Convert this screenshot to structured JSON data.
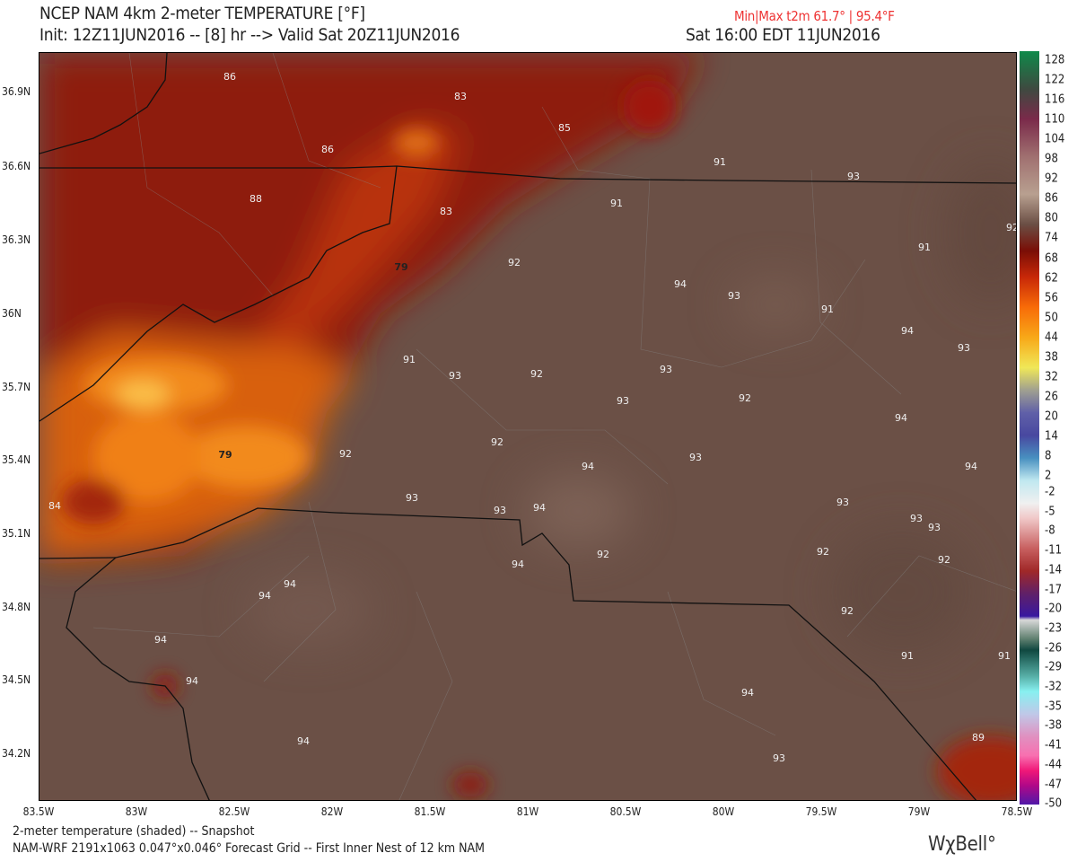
{
  "header": {
    "title": "NCEP NAM 4km 2-meter TEMPERATURE [°F]",
    "init_line": "Init: 12Z11JUN2016 -- [8] hr --> Valid Sat 20Z11JUN2016",
    "minmax": "Min|Max t2m 61.7° | 95.4°F",
    "local_time": "Sat 16:00 EDT 11JUN2016",
    "minmax_color": "#ee3333"
  },
  "lat_labels": [
    "36.9N",
    "36.6N",
    "36.3N",
    "36N",
    "35.7N",
    "35.4N",
    "35.1N",
    "34.8N",
    "34.5N",
    "34.2N"
  ],
  "lon_labels": [
    "83.5W",
    "83W",
    "82.5W",
    "82W",
    "81.5W",
    "81W",
    "80.5W",
    "80W",
    "79.5W",
    "79W",
    "78.5W"
  ],
  "colorbar": {
    "labels": [
      "128",
      "122",
      "116",
      "110",
      "104",
      "98",
      "92",
      "86",
      "80",
      "74",
      "68",
      "62",
      "56",
      "50",
      "44",
      "38",
      "32",
      "26",
      "20",
      "14",
      "8",
      "2",
      "-2",
      "-5",
      "-8",
      "-11",
      "-14",
      "-17",
      "-20",
      "-23",
      "-26",
      "-29",
      "-32",
      "-35",
      "-38",
      "-41",
      "-44",
      "-47",
      "-50"
    ]
  },
  "station_values": [
    "86",
    "83",
    "85",
    "86",
    "91",
    "93",
    "88",
    "83",
    "91",
    "92",
    "91",
    "79",
    "92",
    "94",
    "93",
    "91",
    "94",
    "93",
    "91",
    "93",
    "92",
    "93",
    "92",
    "93",
    "94",
    "92",
    "92",
    "79",
    "94",
    "93",
    "94",
    "93",
    "93",
    "94",
    "93",
    "93",
    "93",
    "84",
    "92",
    "92",
    "92",
    "94",
    "94",
    "94",
    "92",
    "94",
    "91",
    "91",
    "94",
    "94",
    "94",
    "93",
    "89"
  ],
  "footer": {
    "line1": "2-meter temperature (shaded) -- Snapshot",
    "line2": "NAM-WRF 2191x1063 0.047°x0.046° Forecast Grid -- First Inner Nest of 12 km NAM",
    "logo": "WχBell°"
  },
  "colors": {
    "background": "#6b5046",
    "hot_band": "#8b1a0a",
    "orange": "#f08a1c"
  }
}
